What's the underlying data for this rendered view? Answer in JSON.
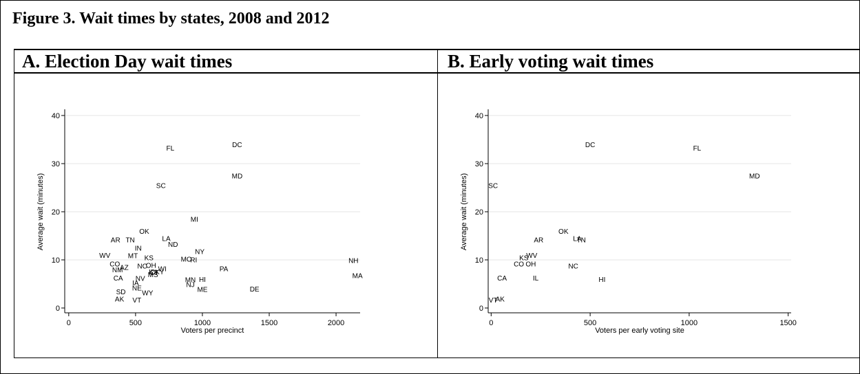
{
  "figure_title": "Figure 3.  Wait times by states, 2008 and 2012",
  "chart_data": [
    {
      "type": "scatter",
      "title": "A. Election Day wait times",
      "xlabel": "Voters per precinct",
      "ylabel": "Average wait (minutes)",
      "xlim": [
        -30,
        2180
      ],
      "ylim": [
        -1,
        41
      ],
      "xticks": [
        0,
        500,
        1000,
        1500,
        2000
      ],
      "yticks": [
        0,
        10,
        20,
        30,
        40
      ],
      "grid": "horizontal",
      "points": [
        {
          "label": "FL",
          "x": 760,
          "y": 33.3
        },
        {
          "label": "DC",
          "x": 1260,
          "y": 34.0
        },
        {
          "label": "MD",
          "x": 1260,
          "y": 27.5
        },
        {
          "label": "SC",
          "x": 690,
          "y": 25.5
        },
        {
          "label": "MI",
          "x": 940,
          "y": 18.5
        },
        {
          "label": "OK",
          "x": 565,
          "y": 16.0
        },
        {
          "label": "AR",
          "x": 350,
          "y": 14.2
        },
        {
          "label": "TN",
          "x": 460,
          "y": 14.2
        },
        {
          "label": "LA",
          "x": 730,
          "y": 14.5
        },
        {
          "label": "ND",
          "x": 780,
          "y": 13.3
        },
        {
          "label": "IN",
          "x": 520,
          "y": 12.5
        },
        {
          "label": "NY",
          "x": 980,
          "y": 11.8
        },
        {
          "label": "WV",
          "x": 270,
          "y": 11.0
        },
        {
          "label": "MT",
          "x": 480,
          "y": 10.9
        },
        {
          "label": "KS",
          "x": 600,
          "y": 10.5
        },
        {
          "label": "MO",
          "x": 880,
          "y": 10.2
        },
        {
          "label": "RI",
          "x": 935,
          "y": 10.1
        },
        {
          "label": "NH",
          "x": 2130,
          "y": 9.9
        },
        {
          "label": "CO",
          "x": 345,
          "y": 9.2
        },
        {
          "label": "NC",
          "x": 550,
          "y": 8.8
        },
        {
          "label": "OH",
          "x": 615,
          "y": 8.9
        },
        {
          "label": "AZ",
          "x": 415,
          "y": 8.5
        },
        {
          "label": "NM",
          "x": 365,
          "y": 8.0
        },
        {
          "label": "WI",
          "x": 700,
          "y": 8.2
        },
        {
          "label": "PA",
          "x": 1160,
          "y": 8.2
        },
        {
          "label": "ID",
          "x": 625,
          "y": 7.6
        },
        {
          "label": "CT",
          "x": 640,
          "y": 7.4
        },
        {
          "label": "KY",
          "x": 680,
          "y": 7.6
        },
        {
          "label": "MS",
          "x": 630,
          "y": 7.0
        },
        {
          "label": "MA",
          "x": 2160,
          "y": 6.8
        },
        {
          "label": "CA",
          "x": 370,
          "y": 6.3
        },
        {
          "label": "NV",
          "x": 535,
          "y": 6.2
        },
        {
          "label": "MN",
          "x": 910,
          "y": 5.9
        },
        {
          "label": "HI",
          "x": 1000,
          "y": 6.0
        },
        {
          "label": "NJ",
          "x": 910,
          "y": 4.9
        },
        {
          "label": "IA",
          "x": 500,
          "y": 5.3
        },
        {
          "label": "NE",
          "x": 510,
          "y": 4.2
        },
        {
          "label": "ME",
          "x": 1000,
          "y": 3.9
        },
        {
          "label": "DE",
          "x": 1390,
          "y": 4.0
        },
        {
          "label": "SD",
          "x": 390,
          "y": 3.4
        },
        {
          "label": "WY",
          "x": 590,
          "y": 3.2
        },
        {
          "label": "AK",
          "x": 380,
          "y": 1.9
        },
        {
          "label": "VT",
          "x": 510,
          "y": 1.7
        }
      ]
    },
    {
      "type": "scatter",
      "title": "B.  Early voting wait times",
      "xlabel": "Voters per early voting site",
      "ylabel": "Average wait (minutes)",
      "xlim": [
        -15,
        1515
      ],
      "ylim": [
        -1,
        41
      ],
      "xticks": [
        0,
        500,
        1000,
        1500
      ],
      "yticks": [
        0,
        10,
        20,
        30,
        40
      ],
      "grid": "horizontal",
      "points": [
        {
          "label": "DC",
          "x": 500,
          "y": 34.0
        },
        {
          "label": "FL",
          "x": 1040,
          "y": 33.3
        },
        {
          "label": "MD",
          "x": 1330,
          "y": 27.5
        },
        {
          "label": "SC",
          "x": 10,
          "y": 25.5
        },
        {
          "label": "OK",
          "x": 365,
          "y": 16.0
        },
        {
          "label": "LA",
          "x": 435,
          "y": 14.5
        },
        {
          "label": "TN",
          "x": 455,
          "y": 14.2
        },
        {
          "label": "AR",
          "x": 240,
          "y": 14.2
        },
        {
          "label": "WV",
          "x": 205,
          "y": 11.0
        },
        {
          "label": "KS",
          "x": 165,
          "y": 10.5
        },
        {
          "label": "CO",
          "x": 140,
          "y": 9.2
        },
        {
          "label": "OH",
          "x": 200,
          "y": 9.2
        },
        {
          "label": "NC",
          "x": 415,
          "y": 8.8
        },
        {
          "label": "CA",
          "x": 55,
          "y": 6.3
        },
        {
          "label": "IL",
          "x": 225,
          "y": 6.3
        },
        {
          "label": "HI",
          "x": 560,
          "y": 6.0
        },
        {
          "label": "AK",
          "x": 45,
          "y": 1.9
        },
        {
          "label": "VT",
          "x": 10,
          "y": 1.7
        }
      ]
    }
  ]
}
